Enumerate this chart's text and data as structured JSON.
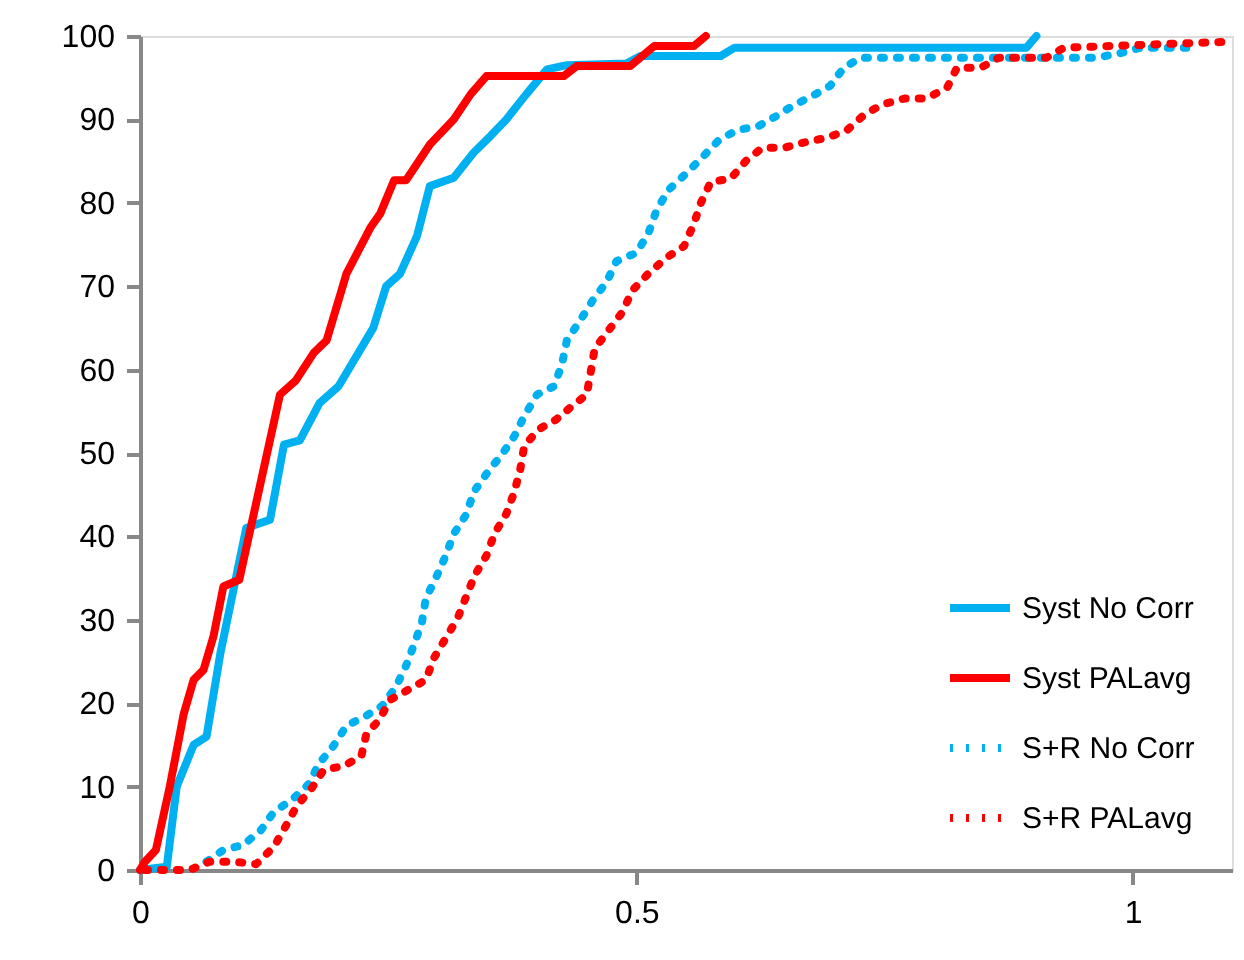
{
  "chart_data": {
    "type": "line",
    "xlim": [
      0,
      1.1
    ],
    "ylim": [
      0,
      100
    ],
    "xticks": [
      0,
      0.5,
      1
    ],
    "yticks": [
      0,
      10,
      20,
      30,
      40,
      50,
      60,
      70,
      80,
      90,
      100
    ],
    "grid": false,
    "legend": "bottom right",
    "marker": "none",
    "series": [
      {
        "name": "Syst No Corr",
        "color": "#00b0f0",
        "line_style": "solid",
        "x": [
          0,
          0.027,
          0.037,
          0.054,
          0.067,
          0.081,
          0.107,
          0.131,
          0.145,
          0.161,
          0.181,
          0.2,
          0.215,
          0.235,
          0.248,
          0.262,
          0.279,
          0.292,
          0.316,
          0.336,
          0.353,
          0.369,
          0.389,
          0.41,
          0.43,
          0.49,
          0.504,
          0.585,
          0.599,
          0.893,
          0.903
        ],
        "values": [
          0,
          0.4,
          10,
          15,
          16,
          26,
          41,
          42,
          51,
          51.5,
          56,
          58,
          61,
          65,
          70,
          71.5,
          76,
          82,
          83,
          86,
          88,
          90,
          93,
          96,
          96.5,
          96.7,
          97.6,
          97.6,
          98.6,
          98.6,
          100
        ]
      },
      {
        "name": "Syst PALavg",
        "color": "#ff0000",
        "line_style": "solid",
        "x": [
          0,
          0.005,
          0.016,
          0.03,
          0.044,
          0.054,
          0.064,
          0.074,
          0.084,
          0.1,
          0.117,
          0.141,
          0.157,
          0.175,
          0.188,
          0.208,
          0.232,
          0.242,
          0.256,
          0.268,
          0.292,
          0.316,
          0.333,
          0.349,
          0.427,
          0.44,
          0.494,
          0.518,
          0.558,
          0.57
        ],
        "values": [
          0,
          1,
          2.4,
          10,
          18.7,
          22.8,
          24,
          28,
          34,
          34.8,
          44,
          57,
          58.7,
          62,
          63.5,
          71.5,
          77,
          78.7,
          82.7,
          82.7,
          87,
          90,
          93,
          95.2,
          95.2,
          96.4,
          96.4,
          98.8,
          98.8,
          100
        ]
      },
      {
        "name": "S+R No Corr",
        "color": "#00b0f0",
        "line_style": "dotted",
        "x": [
          0.067,
          0.084,
          0.104,
          0.122,
          0.135,
          0.153,
          0.17,
          0.18,
          0.195,
          0.208,
          0.228,
          0.244,
          0.258,
          0.268,
          0.276,
          0.284,
          0.288,
          0.298,
          0.308,
          0.316,
          0.329,
          0.336,
          0.349,
          0.365,
          0.377,
          0.387,
          0.4,
          0.417,
          0.425,
          0.43,
          0.444,
          0.456,
          0.47,
          0.48,
          0.5,
          0.512,
          0.52,
          0.532,
          0.55,
          0.566,
          0.583,
          0.601,
          0.623,
          0.641,
          0.657,
          0.677,
          0.695,
          0.709,
          0.726,
          0.963,
          0.986,
          1.008,
          1.054
        ],
        "values": [
          1,
          2.4,
          3,
          4.8,
          7,
          8.4,
          10.3,
          12.7,
          14.9,
          17.3,
          18.5,
          19.7,
          22,
          24.5,
          27,
          29.7,
          32.6,
          35,
          37.7,
          40.3,
          42.7,
          45.3,
          47.5,
          49.9,
          52,
          54.4,
          57,
          58,
          60.6,
          63.5,
          66,
          68.3,
          70.5,
          73,
          74,
          76.3,
          79,
          81.5,
          83.5,
          85.4,
          87.5,
          88.7,
          89.2,
          90.4,
          91.6,
          92.8,
          94,
          96.2,
          97.4,
          97.4,
          97.9,
          98.6,
          98.6
        ]
      },
      {
        "name": "S+R PALavg",
        "color": "#ff0000",
        "line_style": "dotted",
        "x": [
          0.005,
          0.05,
          0.07,
          0.094,
          0.117,
          0.135,
          0.147,
          0.158,
          0.173,
          0.185,
          0.206,
          0.223,
          0.228,
          0.241,
          0.252,
          0.27,
          0.288,
          0.296,
          0.308,
          0.32,
          0.329,
          0.337,
          0.349,
          0.357,
          0.369,
          0.377,
          0.383,
          0.387,
          0.401,
          0.419,
          0.435,
          0.45,
          0.454,
          0.458,
          0.472,
          0.486,
          0.496,
          0.512,
          0.53,
          0.548,
          0.558,
          0.565,
          0.575,
          0.595,
          0.611,
          0.627,
          0.649,
          0.671,
          0.692,
          0.712,
          0.73,
          0.748,
          0.77,
          0.792,
          0.813,
          0.823,
          0.847,
          0.865,
          0.913,
          0.931,
          1.095
        ],
        "values": [
          0,
          0,
          1,
          1,
          0.7,
          2.8,
          5.3,
          7.7,
          9.8,
          12,
          12.5,
          13.7,
          16.3,
          18,
          20.4,
          21.6,
          22.8,
          25.4,
          27.8,
          30.2,
          32.9,
          35.3,
          37.7,
          40.3,
          42.7,
          45.3,
          48,
          50.8,
          52.8,
          54,
          55.6,
          57,
          59.7,
          62.5,
          64.7,
          66.9,
          69.5,
          71.5,
          73.4,
          74.8,
          77.5,
          80,
          82.5,
          82.9,
          85.1,
          86.6,
          86.6,
          87.3,
          87.8,
          88.7,
          90.6,
          91.8,
          92.5,
          92.5,
          93.8,
          96.2,
          96.2,
          97.4,
          97.4,
          98.6,
          99.3
        ]
      }
    ]
  }
}
